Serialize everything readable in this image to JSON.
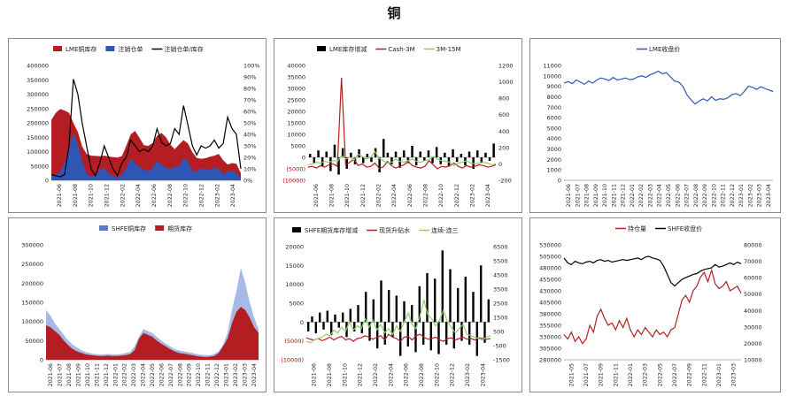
{
  "page": {
    "title": "铜"
  },
  "chart_data": [
    {
      "id": "c1",
      "type": "bar+line",
      "legend": [
        "LME铜库存",
        "注销仓单",
        "注销仓单/库存"
      ],
      "legend_colors": [
        "#b41e22",
        "#2f55b5",
        "#000000"
      ],
      "x_ticks": [
        "2021-06",
        "2021-08",
        "2021-10",
        "2021-12",
        "2022-02",
        "2022-04",
        "2022-06",
        "2022-08",
        "2022-10",
        "2022-12",
        "2023-02",
        "2023-04"
      ],
      "y_ticks": [
        "0",
        "50000",
        "100000",
        "150000",
        "200000",
        "250000",
        "300000",
        "350000",
        "400000"
      ],
      "y2_ticks": [
        "0%",
        "10%",
        "20%",
        "30%",
        "40%",
        "50%",
        "60%",
        "70%",
        "80%",
        "90%",
        "100%"
      ],
      "ylim": [
        0,
        400000
      ],
      "y2lim": [
        0,
        100
      ],
      "series": [
        {
          "name": "LME铜库存",
          "kind": "area",
          "color": "#b41e22",
          "values": [
            210000,
            235000,
            248000,
            243000,
            235000,
            200000,
            168000,
            118000,
            92000,
            86000,
            85000,
            84000,
            86000,
            83000,
            81000,
            79000,
            84000,
            120000,
            160000,
            172000,
            148000,
            122000,
            120000,
            130000,
            155000,
            165000,
            150000,
            125000,
            108000,
            125000,
            140000,
            128000,
            98000,
            78000,
            75000,
            77000,
            82000,
            86000,
            92000,
            70000,
            55000,
            60000,
            58000,
            25000
          ]
        },
        {
          "name": "注销仓单",
          "kind": "area",
          "color": "#2f55b5",
          "values": [
            15000,
            22000,
            30000,
            60000,
            110000,
            165000,
            125000,
            65000,
            25000,
            12000,
            20000,
            35000,
            45000,
            25000,
            14000,
            10000,
            20000,
            42000,
            75000,
            62000,
            45000,
            38000,
            32000,
            45000,
            68000,
            55000,
            45000,
            40000,
            48000,
            50000,
            78000,
            68000,
            30000,
            32000,
            42000,
            38000,
            35000,
            45000,
            40000,
            22000,
            30000,
            35000,
            27000,
            8000
          ]
        },
        {
          "name": "注销仓单/库存",
          "kind": "line",
          "axis": "right",
          "color": "#000000",
          "values": [
            5,
            4,
            3,
            5,
            30,
            88,
            75,
            50,
            30,
            10,
            4,
            15,
            30,
            20,
            10,
            4,
            15,
            20,
            35,
            30,
            25,
            27,
            25,
            30,
            45,
            33,
            30,
            32,
            45,
            40,
            65,
            48,
            30,
            22,
            30,
            28,
            30,
            35,
            28,
            32,
            55,
            45,
            40,
            10
          ]
        }
      ]
    },
    {
      "id": "c2",
      "type": "bar+line",
      "legend": [
        "LME库存增减",
        "Cash-3M",
        "3M-15M"
      ],
      "legend_colors": [
        "#000000",
        "#b41e22",
        "#8fce6a"
      ],
      "x_ticks": [
        "2021-06",
        "2021-08",
        "2021-10",
        "2021-12",
        "2022-02",
        "2022-04",
        "2022-06",
        "2022-08",
        "2022-10",
        "2022-12",
        "2023-02",
        "2023-04"
      ],
      "y_ticks": [
        "(10000)",
        "(5000)",
        "0",
        "5000",
        "10000",
        "15000",
        "20000",
        "25000",
        "30000",
        "35000",
        "40000"
      ],
      "y2_ticks": [
        "-200",
        "0",
        "200",
        "400",
        "600",
        "800",
        "1000",
        "1200"
      ],
      "ylim": [
        -10000,
        40000
      ],
      "y2lim": [
        -200,
        1200
      ],
      "series": [
        {
          "name": "LME库存增减",
          "kind": "bar",
          "color": "#000000",
          "values": [
            1500,
            -2500,
            3000,
            -4000,
            2500,
            -6000,
            5500,
            -7500,
            4000,
            -5000,
            2000,
            -3000,
            3500,
            -2500,
            1500,
            -2000,
            4000,
            -6500,
            8000,
            2000,
            -3000,
            2500,
            -4500,
            3000,
            -2500,
            5000,
            -3500,
            2500,
            -1500,
            3000,
            -2500,
            4500,
            -3000,
            2000,
            -4000,
            3500,
            -2000,
            1500,
            -3500,
            2500,
            -5000,
            3000,
            -2500,
            2000,
            -1500,
            6000
          ]
        },
        {
          "name": "Cash-3M",
          "kind": "line",
          "axis": "right",
          "color": "#b41e22",
          "values": [
            -40,
            -30,
            -50,
            -20,
            -40,
            -10,
            0,
            -30,
            1050,
            -10,
            20,
            60,
            -20,
            0,
            -40,
            -30,
            10,
            -50,
            -40,
            30,
            -20,
            -50,
            -30,
            -10,
            30,
            -20,
            -40,
            -50,
            -30,
            40,
            -10,
            -60,
            -30,
            -40,
            -20,
            10,
            -30,
            -50,
            -20,
            -40,
            -30,
            -10,
            -20,
            -40,
            -30,
            -10
          ]
        },
        {
          "name": "3M-15M",
          "kind": "line",
          "axis": "right",
          "color": "#8fce6a",
          "values": [
            -10,
            0,
            20,
            10,
            30,
            20,
            40,
            30,
            100,
            60,
            80,
            50,
            120,
            90,
            60,
            80,
            150,
            70,
            40,
            10,
            20,
            60,
            30,
            20,
            40,
            60,
            30,
            20,
            40,
            50,
            90,
            60,
            40,
            30,
            20,
            -20,
            10,
            20,
            40,
            10,
            0,
            10,
            20,
            10,
            -10,
            0
          ]
        }
      ]
    },
    {
      "id": "c3",
      "type": "line",
      "legend": [
        "LME收盘价"
      ],
      "legend_colors": [
        "#2f55b5"
      ],
      "x_ticks": [
        "2021-06",
        "2021-07",
        "2021-08",
        "2021-09",
        "2021-10",
        "2021-11",
        "2021-12",
        "2022-01",
        "2022-02",
        "2022-03",
        "2022-04",
        "2022-05",
        "2022-06",
        "2022-07",
        "2022-08",
        "2022-09",
        "2022-10",
        "2022-11",
        "2022-12",
        "2023-01",
        "2023-02",
        "2023-03",
        "2023-04"
      ],
      "y_ticks": [
        "0",
        "1000",
        "2000",
        "3000",
        "4000",
        "5000",
        "6000",
        "7000",
        "8000",
        "9000",
        "10000",
        "11000"
      ],
      "ylim": [
        0,
        11000
      ],
      "series": [
        {
          "name": "LME收盘价",
          "kind": "line",
          "color": "#2f55b5",
          "values": [
            9300,
            9450,
            9250,
            9600,
            9400,
            9200,
            9500,
            9300,
            9600,
            9800,
            9700,
            9550,
            9850,
            9600,
            9700,
            9800,
            9650,
            9700,
            9900,
            10000,
            9850,
            10100,
            10250,
            10450,
            10200,
            10300,
            9900,
            9500,
            9400,
            9000,
            8200,
            7700,
            7300,
            7600,
            7800,
            7600,
            8000,
            7650,
            7800,
            7750,
            7900,
            8200,
            8300,
            8100,
            8500,
            9000,
            8900,
            8700,
            8950,
            8800,
            8650,
            8500
          ]
        }
      ]
    },
    {
      "id": "c4",
      "type": "bar",
      "legend": [
        "SHFE铜库存",
        "期货库存"
      ],
      "legend_colors": [
        "#5b79c8",
        "#b41e22"
      ],
      "x_ticks": [
        "2021-06",
        "2021-07",
        "2021-08",
        "2021-09",
        "2021-10",
        "2021-11",
        "2021-12",
        "2022-01",
        "2022-02",
        "2022-03",
        "2022-04",
        "2022-05",
        "2022-06",
        "2022-07",
        "2022-08",
        "2022-09",
        "2022-10",
        "2022-11",
        "2022-12",
        "2023-01",
        "2023-02",
        "2023-03",
        "2023-04"
      ],
      "y_ticks": [
        "0",
        "50000",
        "100000",
        "150000",
        "200000",
        "250000",
        "300000"
      ],
      "ylim": [
        0,
        300000
      ],
      "series": [
        {
          "name": "SHFE铜库存",
          "kind": "area",
          "color": "#a7b9e6",
          "values": [
            130000,
            115000,
            95000,
            80000,
            65000,
            50000,
            40000,
            32000,
            25000,
            20000,
            17000,
            15000,
            14000,
            14000,
            15000,
            14000,
            14000,
            15000,
            18000,
            20000,
            35000,
            60000,
            80000,
            75000,
            70000,
            60000,
            50000,
            42000,
            35000,
            28000,
            25000,
            22000,
            20000,
            18000,
            15000,
            13000,
            12000,
            12000,
            15000,
            22000,
            40000,
            70000,
            130000,
            180000,
            240000,
            200000,
            150000,
            110000,
            80000
          ]
        },
        {
          "name": "期货库存",
          "kind": "area",
          "color": "#b41e22",
          "values": [
            90000,
            85000,
            75000,
            65000,
            50000,
            38000,
            28000,
            22000,
            18000,
            14000,
            12000,
            11000,
            10000,
            10000,
            11000,
            10000,
            10000,
            11000,
            12000,
            15000,
            25000,
            55000,
            70000,
            65000,
            60000,
            50000,
            42000,
            35000,
            28000,
            22000,
            18000,
            16000,
            14000,
            12000,
            10000,
            8000,
            7000,
            8000,
            10000,
            18000,
            35000,
            55000,
            95000,
            125000,
            138000,
            130000,
            110000,
            85000,
            70000
          ]
        }
      ]
    },
    {
      "id": "c5",
      "type": "bar+line",
      "legend": [
        "SHFE期货库存增减",
        "现货升贴水",
        "连续-连三"
      ],
      "legend_colors": [
        "#000000",
        "#b41e22",
        "#8fce6a"
      ],
      "x_ticks": [
        "2021-06",
        "2021-08",
        "2021-10",
        "2021-12",
        "2022-02",
        "2022-04",
        "2022-06",
        "2022-08",
        "2022-10",
        "2022-12",
        "2023-02",
        "2023-04"
      ],
      "y_ticks": [
        "(10000)",
        "(5000)",
        "0",
        "5000",
        "10000",
        "15000",
        "20000"
      ],
      "y2_ticks": [
        "-1500",
        "-500",
        "500",
        "1500",
        "2500",
        "3500",
        "4500",
        "5500",
        "6500"
      ],
      "ylim": [
        -10000,
        20000
      ],
      "y2lim": [
        -1500,
        6500
      ],
      "series": [
        {
          "name": "SHFE期货库存增减",
          "kind": "bar",
          "color": "#000000",
          "values": [
            -2500,
            1500,
            -3000,
            2500,
            -2000,
            3000,
            -3500,
            2000,
            -1500,
            2500,
            -4000,
            3500,
            -2500,
            4500,
            -3000,
            8000,
            -5000,
            6000,
            -7000,
            11000,
            -6000,
            8500,
            -4000,
            7000,
            -9000,
            5500,
            -6500,
            4500,
            -8000,
            9500,
            -6000,
            13000,
            -7500,
            11500,
            -8500,
            19000,
            -6000,
            14000,
            -7000,
            9000,
            -5000,
            12000,
            -6000,
            8000,
            -9000,
            15000,
            -5500,
            6000
          ]
        },
        {
          "name": "现货升贴水",
          "kind": "line",
          "axis": "right",
          "color": "#b41e22",
          "values": [
            50,
            -50,
            -100,
            0,
            -150,
            -50,
            100,
            -100,
            50,
            150,
            -100,
            0,
            -200,
            0,
            50,
            200,
            100,
            -50,
            100,
            200,
            -100,
            300,
            100,
            0,
            -200,
            100,
            150,
            -100,
            200,
            300,
            100,
            -50,
            0,
            100,
            -100,
            -200,
            0,
            50,
            -100,
            0,
            100,
            -50,
            0,
            -100,
            50,
            0,
            -50,
            0
          ]
        },
        {
          "name": "连续-连三",
          "kind": "line",
          "axis": "right",
          "color": "#8fce6a",
          "values": [
            -200,
            -300,
            -100,
            0,
            100,
            300,
            200,
            600,
            400,
            800,
            500,
            1200,
            600,
            900,
            700,
            1400,
            800,
            1300,
            600,
            1000,
            400,
            700,
            300,
            900,
            500,
            1200,
            1800,
            1000,
            700,
            1600,
            2700,
            1700,
            1400,
            900,
            1300,
            2000,
            1200,
            800,
            400,
            700,
            1000,
            300,
            200,
            100,
            0,
            -100,
            100,
            200
          ]
        }
      ]
    },
    {
      "id": "c6",
      "type": "line",
      "legend": [
        "持仓量",
        "SHFE收盘价"
      ],
      "legend_colors": [
        "#b41e22",
        "#000000"
      ],
      "x_ticks": [
        "2021-05",
        "2021-07",
        "2021-09",
        "2021-11",
        "2022-01",
        "2022-03",
        "2022-05",
        "2022-07",
        "2022-09",
        "2022-11",
        "2023-01",
        "2023-03"
      ],
      "y_ticks": [
        "280000",
        "305000",
        "330000",
        "355000",
        "380000",
        "405000",
        "430000",
        "455000",
        "480000",
        "505000",
        "530000"
      ],
      "y2_ticks": [
        "10000",
        "20000",
        "30000",
        "40000",
        "50000",
        "60000",
        "70000",
        "80000"
      ],
      "ylim": [
        280000,
        530000
      ],
      "y2lim": [
        10000,
        80000
      ],
      "series": [
        {
          "name": "持仓量",
          "kind": "line",
          "color": "#b41e22",
          "values": [
            335000,
            325000,
            340000,
            320000,
            330000,
            315000,
            325000,
            355000,
            340000,
            375000,
            390000,
            370000,
            355000,
            360000,
            345000,
            365000,
            350000,
            370000,
            345000,
            330000,
            345000,
            335000,
            350000,
            340000,
            330000,
            345000,
            335000,
            340000,
            330000,
            345000,
            350000,
            380000,
            410000,
            420000,
            405000,
            430000,
            440000,
            460000,
            470000,
            450000,
            475000,
            445000,
            435000,
            440000,
            450000,
            430000,
            435000,
            440000,
            425000
          ]
        },
        {
          "name": "SHFE收盘价",
          "kind": "line",
          "axis": "right",
          "color": "#000000",
          "values": [
            72000,
            69000,
            68000,
            70000,
            69000,
            68500,
            69500,
            70000,
            69000,
            70500,
            71000,
            70000,
            70500,
            69500,
            70000,
            70500,
            71000,
            70500,
            71000,
            71500,
            72000,
            71000,
            72500,
            73000,
            72000,
            71500,
            70500,
            67000,
            62000,
            57000,
            55000,
            57000,
            59000,
            60000,
            61000,
            62000,
            62500,
            64000,
            65000,
            65500,
            66000,
            68000,
            66500,
            67000,
            68000,
            69000,
            68000,
            69500,
            68500
          ]
        }
      ]
    }
  ]
}
